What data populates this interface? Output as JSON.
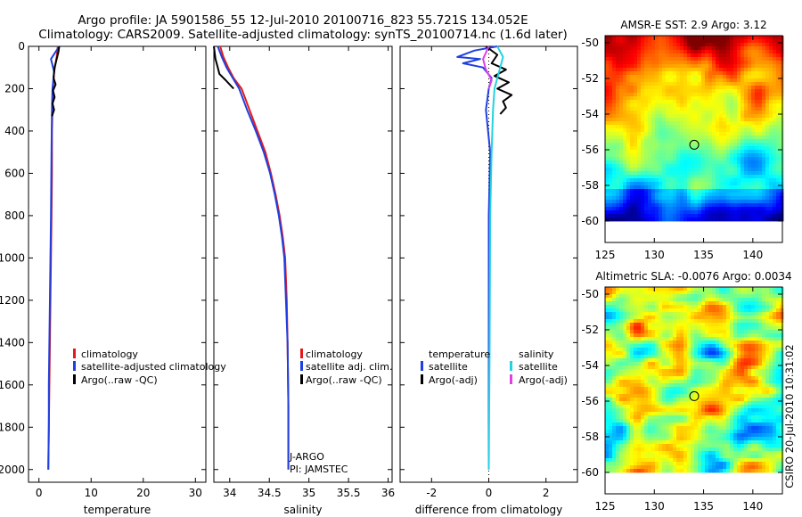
{
  "figure": {
    "title_line1": "Argo profile: JA 5901586_55 12-Jul-2010 20100716_823 55.721S 134.052E",
    "title_line2": "Climatology: CARS2009. Satellite-adjusted climatology: synTS_20100714.nc (1.6d later)",
    "side_stamp": "CSIRO 20-Jul-2010 10:31:02"
  },
  "colors": {
    "climatology": "#e41a1c",
    "satellite": "#1f3fe0",
    "argo": "#000000",
    "salinity_satellite": "#22d3e0",
    "salinity_argo": "#e040e0"
  },
  "chart_data": [
    {
      "id": "temperature",
      "type": "line",
      "xlabel": "temperature",
      "ylabel": "",
      "xlim": [
        -2,
        32
      ],
      "ylim": [
        2060,
        0
      ],
      "xticks": [
        0,
        10,
        20,
        30
      ],
      "xtick_labels": [
        "0",
        "10",
        "20",
        "30"
      ],
      "yticks": [
        0,
        200,
        400,
        600,
        800,
        1000,
        1200,
        1400,
        1600,
        1800,
        2000
      ],
      "ytick_labels": [
        "0",
        "200",
        "400",
        "600",
        "800",
        "1000",
        "1200",
        "1400",
        "1600",
        "1800",
        "2000"
      ],
      "legend": [
        "climatology",
        "satellite-adjusted climatology",
        "Argo(..raw -QC)"
      ],
      "series": [
        {
          "name": "climatology",
          "color_key": "climatology",
          "x": [
            3.6,
            3.4,
            2.9,
            2.7,
            2.6,
            2.5,
            2.5,
            2.4,
            2.3,
            2.2,
            2.1,
            2.0,
            1.9,
            1.8
          ],
          "y": [
            0,
            50,
            120,
            200,
            300,
            400,
            600,
            800,
            1000,
            1200,
            1400,
            1600,
            1800,
            2000
          ]
        },
        {
          "name": "satellite-adjusted climatology",
          "color_key": "satellite",
          "x": [
            3.9,
            3.1,
            2.3,
            2.9,
            2.6,
            2.5,
            2.4,
            2.3,
            2.2,
            2.1,
            2.0,
            1.9,
            1.9,
            1.8
          ],
          "y": [
            0,
            30,
            60,
            120,
            200,
            300,
            500,
            800,
            1000,
            1200,
            1400,
            1600,
            1800,
            2000
          ]
        },
        {
          "name": "Argo(..raw -QC)",
          "color_key": "argo",
          "x": [
            3.9,
            3.7,
            3.4,
            3.0,
            2.8,
            3.2,
            2.7,
            3.0,
            2.6,
            2.9,
            2.5
          ],
          "y": [
            0,
            30,
            60,
            100,
            150,
            180,
            210,
            240,
            270,
            300,
            330
          ]
        }
      ]
    },
    {
      "id": "salinity",
      "type": "line",
      "xlabel": "salinity",
      "ylabel": "",
      "xlim": [
        33.8,
        36.05
      ],
      "ylim": [
        2060,
        0
      ],
      "xticks": [
        34,
        34.5,
        35,
        35.5,
        36
      ],
      "xtick_labels": [
        "34",
        "34.5",
        "35",
        "35.5",
        "36"
      ],
      "legend": [
        "climatology",
        "satellite adj. clim.",
        "Argo(..raw -QC)"
      ],
      "annotation_line1": "J-ARGO",
      "annotation_line2": "PI: JAMSTEC",
      "series": [
        {
          "name": "climatology",
          "color_key": "climatology",
          "x": [
            33.88,
            33.92,
            33.98,
            34.05,
            34.15,
            34.25,
            34.35,
            34.45,
            34.52,
            34.58,
            34.63,
            34.67,
            34.7,
            34.72,
            34.73,
            34.74,
            34.74
          ],
          "y": [
            0,
            50,
            100,
            150,
            200,
            300,
            400,
            500,
            600,
            700,
            800,
            900,
            1000,
            1200,
            1400,
            1700,
            2000
          ]
        },
        {
          "name": "satellite adj. clim.",
          "color_key": "satellite",
          "x": [
            33.85,
            33.9,
            33.96,
            34.04,
            34.12,
            34.22,
            34.33,
            34.43,
            34.51,
            34.57,
            34.62,
            34.66,
            34.69,
            34.71,
            34.73,
            34.74,
            34.74
          ],
          "y": [
            0,
            50,
            100,
            150,
            200,
            300,
            400,
            500,
            600,
            700,
            800,
            900,
            1000,
            1200,
            1400,
            1700,
            2000
          ]
        },
        {
          "name": "Argo(..raw -QC)",
          "color_key": "argo",
          "x": [
            33.8,
            33.82,
            33.85,
            33.87,
            33.95,
            34.05
          ],
          "y": [
            0,
            60,
            100,
            130,
            160,
            200
          ]
        }
      ]
    },
    {
      "id": "difference",
      "type": "line",
      "xlabel": "difference from climatology",
      "ylabel": "",
      "xlim": [
        -3.1,
        3.1
      ],
      "ylim": [
        2060,
        0
      ],
      "xticks": [
        -2,
        0,
        2
      ],
      "xtick_labels": [
        "-2",
        "0",
        "2"
      ],
      "legend_temperature_header": "temperature",
      "legend_salinity_header": "salinity",
      "legend_temperature": [
        "satellite",
        "Argo(-adj)"
      ],
      "legend_salinity": [
        "satellite",
        "Argo(-adj)"
      ],
      "series": [
        {
          "name": "temperature satellite",
          "color_key": "satellite",
          "x": [
            0.3,
            -0.5,
            -1.1,
            -0.3,
            -0.9,
            -0.2,
            0.1,
            0.0,
            -0.1,
            0.05,
            0.0,
            0.0,
            0.0,
            0.0
          ],
          "y": [
            0,
            20,
            50,
            60,
            80,
            100,
            150,
            200,
            300,
            500,
            800,
            1200,
            1600,
            2000
          ]
        },
        {
          "name": "temperature Argo(-adj)",
          "color_key": "argo",
          "x": [
            -0.1,
            0.3,
            0.1,
            0.6,
            0.2,
            0.7,
            0.3,
            0.8,
            0.5,
            0.6,
            0.4
          ],
          "y": [
            0,
            40,
            80,
            110,
            140,
            170,
            200,
            230,
            260,
            290,
            320
          ]
        },
        {
          "name": "salinity satellite",
          "color_key": "salinity_satellite",
          "x": [
            0.3,
            0.5,
            0.4,
            0.3,
            0.2,
            0.15,
            0.1,
            0.05,
            0.03,
            0.0
          ],
          "y": [
            0,
            50,
            100,
            150,
            200,
            300,
            500,
            800,
            1400,
            2000
          ]
        },
        {
          "name": "salinity Argo(-adj)",
          "color_key": "salinity_argo",
          "x": [
            0.0,
            -0.2,
            -0.1,
            0.1,
            0.0
          ],
          "y": [
            0,
            60,
            110,
            160,
            200
          ]
        }
      ]
    },
    {
      "id": "sst_map",
      "type": "heatmap",
      "title": "AMSR-E SST: 2.9 Argo: 3.12",
      "xlim": [
        125,
        143
      ],
      "ylim": [
        -61.2,
        -49.6
      ],
      "xticks": [
        125,
        130,
        135,
        140
      ],
      "xtick_labels": [
        "125",
        "130",
        "135",
        "140"
      ],
      "yticks": [
        -50,
        -52,
        -54,
        -56,
        -58,
        -60
      ],
      "ytick_labels": [
        "-50",
        "-52",
        "-54",
        "-56",
        "-58",
        "-60"
      ],
      "data_lat_range": [
        -60,
        -49.6
      ],
      "marker": {
        "lon": 134.05,
        "lat": -55.72
      }
    },
    {
      "id": "sla_map",
      "type": "heatmap",
      "title": "Altimetric SLA: -0.0076 Argo: 0.0034",
      "xlim": [
        125,
        143
      ],
      "ylim": [
        -61.2,
        -49.6
      ],
      "xticks": [
        125,
        130,
        135,
        140
      ],
      "xtick_labels": [
        "125",
        "130",
        "135",
        "140"
      ],
      "yticks": [
        -50,
        -52,
        -54,
        -56,
        -58,
        -60
      ],
      "ytick_labels": [
        "-50",
        "-52",
        "-54",
        "-56",
        "-58",
        "-60"
      ],
      "data_lat_range": [
        -60,
        -49.6
      ],
      "marker": {
        "lon": 134.05,
        "lat": -55.72
      }
    }
  ]
}
